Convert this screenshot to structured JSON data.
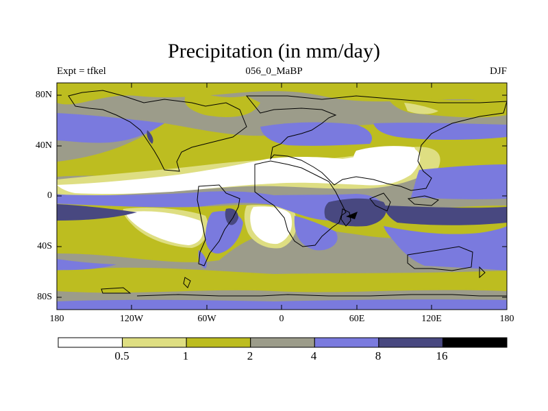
{
  "title": "Precipitation (in mm/day)",
  "subtitle_left": "Expt = tfkel",
  "subtitle_center": "056_0_MaBP",
  "subtitle_right": "DJF",
  "lat_ticks": [
    "80N",
    "40N",
    "0",
    "40S",
    "80S"
  ],
  "lon_ticks": [
    "180",
    "120W",
    "60W",
    "0",
    "60E",
    "120E",
    "180"
  ],
  "colorbar": {
    "levels": [
      "0.5",
      "1",
      "2",
      "4",
      "8",
      "16"
    ],
    "colors": [
      "#ffffff",
      "#dede82",
      "#bdbd20",
      "#9c9c8a",
      "#7a7ade",
      "#484880",
      "#000000"
    ]
  },
  "map_colors": {
    "coast": "#000000",
    "frame": "#000000"
  }
}
